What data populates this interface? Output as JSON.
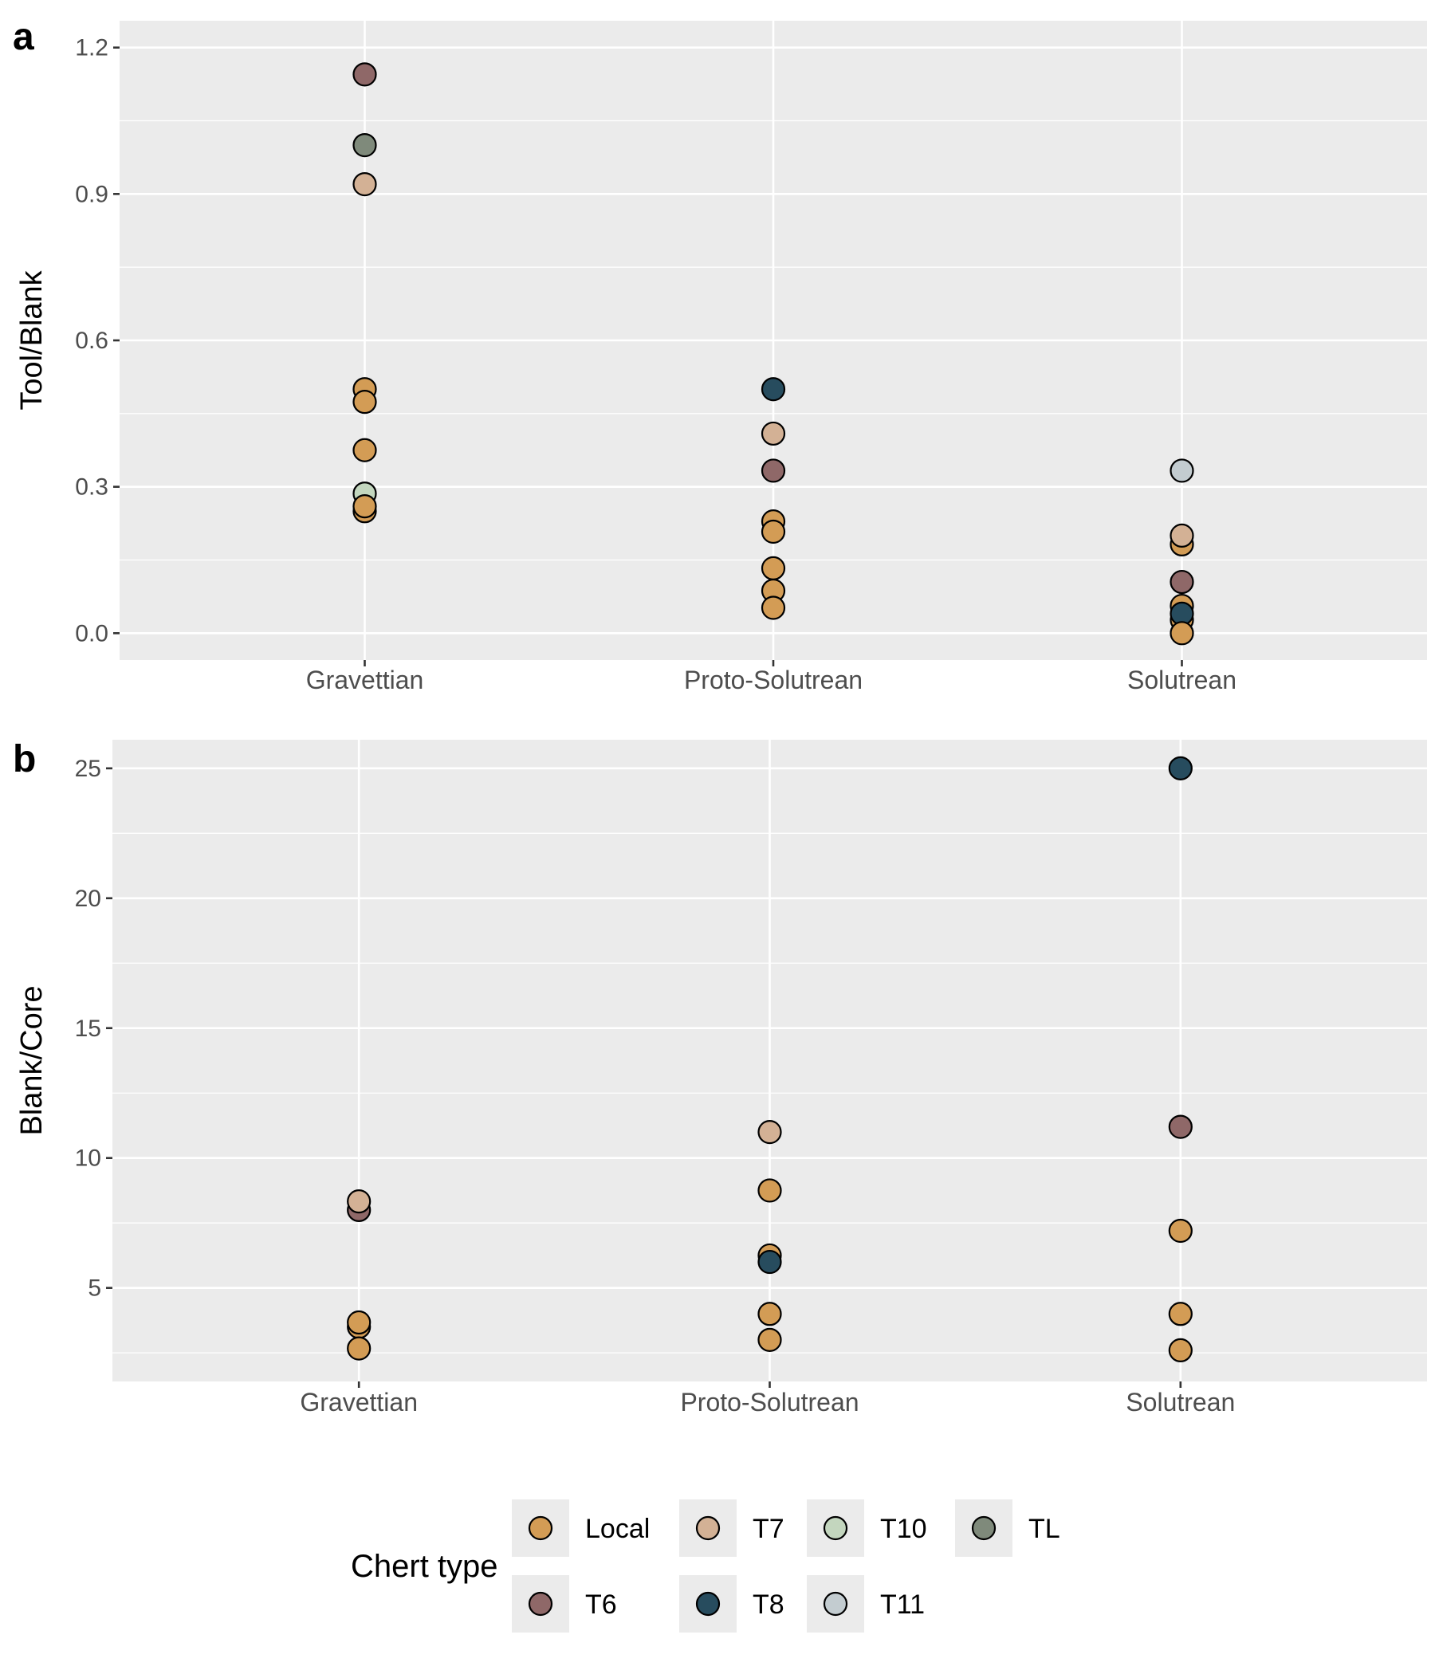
{
  "colors": {
    "panel_bg": "#EBEBEB",
    "grid": "#FFFFFF",
    "axis_text": "#4D4D4D",
    "point_stroke": "#000000",
    "Local": "#D39C55",
    "T7": "#D3B195",
    "T10": "#C3D6BE",
    "TL": "#7F8A7B",
    "T6": "#8F6868",
    "T8": "#274C5E",
    "T11": "#C3CCD0"
  },
  "chart_data": [
    {
      "type": "scatter",
      "panel_tag": "a",
      "title": "",
      "xlabel": "",
      "ylabel": "Tool/Blank",
      "categories": [
        "Gravettian",
        "Proto-Solutrean",
        "Solutrean"
      ],
      "ylim": [
        -0.055,
        1.255
      ],
      "yticks": [
        0.0,
        0.3,
        0.6,
        0.9,
        1.2
      ],
      "ytick_labels": [
        "0.0",
        "0.3",
        "0.6",
        "0.9",
        "1.2"
      ],
      "grid": true,
      "points": [
        {
          "x": "Gravettian",
          "y": 1.145,
          "group": "T6"
        },
        {
          "x": "Gravettian",
          "y": 1.0,
          "group": "TL"
        },
        {
          "x": "Gravettian",
          "y": 0.92,
          "group": "T7"
        },
        {
          "x": "Gravettian",
          "y": 0.5,
          "group": "Local"
        },
        {
          "x": "Gravettian",
          "y": 0.474,
          "group": "Local"
        },
        {
          "x": "Gravettian",
          "y": 0.375,
          "group": "Local"
        },
        {
          "x": "Gravettian",
          "y": 0.286,
          "group": "T10"
        },
        {
          "x": "Gravettian",
          "y": 0.25,
          "group": "Local"
        },
        {
          "x": "Gravettian",
          "y": 0.26,
          "group": "Local"
        },
        {
          "x": "Proto-Solutrean",
          "y": 0.5,
          "group": "T8"
        },
        {
          "x": "Proto-Solutrean",
          "y": 0.409,
          "group": "T7"
        },
        {
          "x": "Proto-Solutrean",
          "y": 0.333,
          "group": "T6"
        },
        {
          "x": "Proto-Solutrean",
          "y": 0.229,
          "group": "Local"
        },
        {
          "x": "Proto-Solutrean",
          "y": 0.208,
          "group": "Local"
        },
        {
          "x": "Proto-Solutrean",
          "y": 0.133,
          "group": "Local"
        },
        {
          "x": "Proto-Solutrean",
          "y": 0.087,
          "group": "Local"
        },
        {
          "x": "Proto-Solutrean",
          "y": 0.052,
          "group": "Local"
        },
        {
          "x": "Solutrean",
          "y": 0.333,
          "group": "T11"
        },
        {
          "x": "Solutrean",
          "y": 0.182,
          "group": "Local"
        },
        {
          "x": "Solutrean",
          "y": 0.2,
          "group": "T7"
        },
        {
          "x": "Solutrean",
          "y": 0.105,
          "group": "T6"
        },
        {
          "x": "Solutrean",
          "y": 0.056,
          "group": "Local"
        },
        {
          "x": "Solutrean",
          "y": 0.027,
          "group": "Local"
        },
        {
          "x": "Solutrean",
          "y": 0.04,
          "group": "T8"
        },
        {
          "x": "Solutrean",
          "y": 0.0,
          "group": "Local"
        }
      ]
    },
    {
      "type": "scatter",
      "panel_tag": "b",
      "title": "",
      "xlabel": "",
      "ylabel": "Blank/Core",
      "categories": [
        "Gravettian",
        "Proto-Solutrean",
        "Solutrean"
      ],
      "ylim": [
        1.4,
        26.1
      ],
      "yticks": [
        5,
        10,
        15,
        20,
        25
      ],
      "ytick_labels": [
        "5",
        "10",
        "15",
        "20",
        "25"
      ],
      "grid": true,
      "points": [
        {
          "x": "Gravettian",
          "y": 8.0,
          "group": "T6"
        },
        {
          "x": "Gravettian",
          "y": 8.33,
          "group": "T7"
        },
        {
          "x": "Gravettian",
          "y": 3.5,
          "group": "Local"
        },
        {
          "x": "Gravettian",
          "y": 3.67,
          "group": "Local"
        },
        {
          "x": "Gravettian",
          "y": 2.67,
          "group": "Local"
        },
        {
          "x": "Proto-Solutrean",
          "y": 11.0,
          "group": "T7"
        },
        {
          "x": "Proto-Solutrean",
          "y": 8.75,
          "group": "Local"
        },
        {
          "x": "Proto-Solutrean",
          "y": 6.25,
          "group": "Local"
        },
        {
          "x": "Proto-Solutrean",
          "y": 6.0,
          "group": "T8"
        },
        {
          "x": "Proto-Solutrean",
          "y": 4.0,
          "group": "Local"
        },
        {
          "x": "Proto-Solutrean",
          "y": 3.0,
          "group": "Local"
        },
        {
          "x": "Solutrean",
          "y": 25.0,
          "group": "T8"
        },
        {
          "x": "Solutrean",
          "y": 11.2,
          "group": "T6"
        },
        {
          "x": "Solutrean",
          "y": 7.2,
          "group": "Local"
        },
        {
          "x": "Solutrean",
          "y": 4.0,
          "group": "Local"
        },
        {
          "x": "Solutrean",
          "y": 2.6,
          "group": "Local"
        }
      ]
    }
  ],
  "legend": {
    "title": "Chert type",
    "placement": "bottom",
    "rows": [
      [
        "Local",
        "T7",
        "T10",
        "TL"
      ],
      [
        "T6",
        "T8",
        "T11"
      ]
    ]
  }
}
